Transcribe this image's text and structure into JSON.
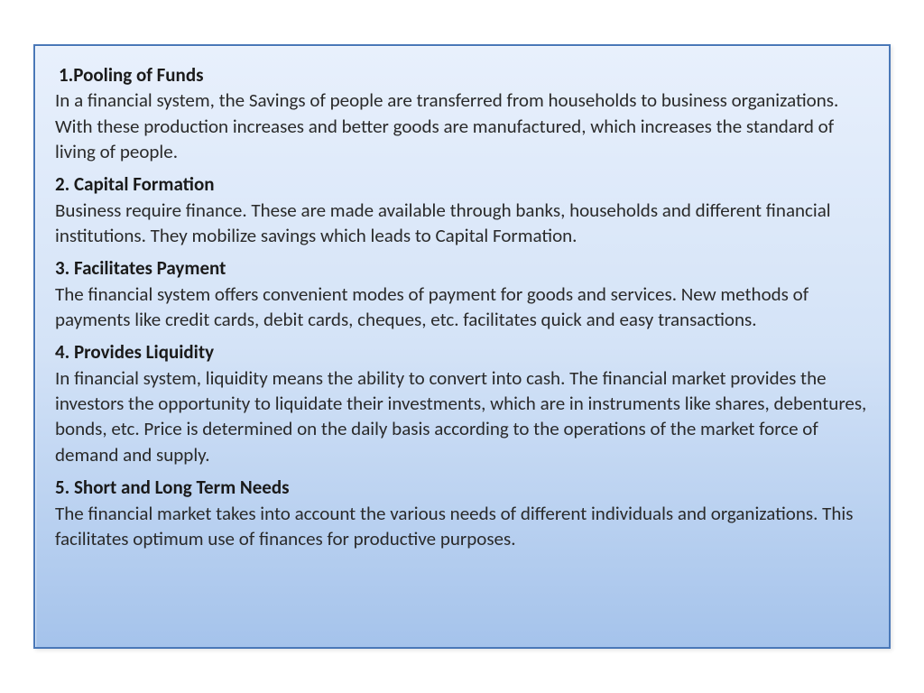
{
  "slide": {
    "background_gradient_top": "#e8f0fc",
    "background_gradient_mid": "#d4e3f7",
    "background_gradient_bottom": "#a5c3eb",
    "border_color": "#4a78b8",
    "heading_color": "#1a1a1a",
    "body_color": "#2a2a2a",
    "font_family": "Calibri",
    "heading_fontsize": 21,
    "body_fontsize": 21,
    "sections": [
      {
        "heading": "1.Pooling of Funds",
        "body": "In a financial system, the Savings of people are transferred from households to business organizations. With these production increases and better goods are manufactured, which increases the standard of living of people."
      },
      {
        "heading": "2. Capital Formation",
        "body": "Business require finance. These are made available through banks, households and different financial institutions. They mobilize savings which leads to Capital Formation."
      },
      {
        "heading": "3. Facilitates Payment",
        "body": "The financial system offers convenient modes of payment for goods and services. New methods of payments like credit cards, debit cards, cheques, etc. facilitates quick and easy transactions."
      },
      {
        "heading": "4. Provides Liquidity",
        "body": "In financial system, liquidity means the ability to convert into cash. The financial market provides the investors the opportunity to liquidate their investments, which are in instruments like shares, debentures, bonds, etc. Price is determined on the daily basis according to the operations of the market force of demand and supply."
      },
      {
        "heading": "5. Short and Long Term Needs",
        "body": "The financial market takes into account the various needs of different individuals and organizations. This facilitates optimum use of finances for productive purposes."
      }
    ]
  }
}
